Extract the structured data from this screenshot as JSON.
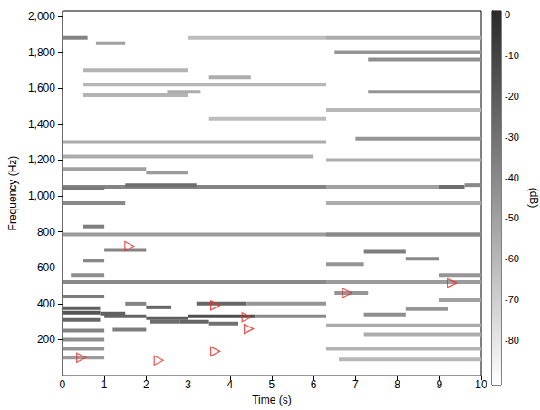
{
  "chart_data": {
    "type": "heatmap",
    "xlabel": "Time (s)",
    "ylabel": "Frequency (Hz)",
    "xlim": [
      0,
      10
    ],
    "xticks": [
      0,
      1,
      2,
      3,
      4,
      5,
      6,
      7,
      8,
      9,
      10
    ],
    "ylim": [
      0,
      2030
    ],
    "yticks": [
      200,
      400,
      600,
      800,
      1000,
      1200,
      1400,
      1600,
      1800,
      2000
    ],
    "cells": [
      [
        0,
        0.9,
        350,
        -18
      ],
      [
        0,
        0.9,
        375,
        -22
      ],
      [
        0,
        0.9,
        310,
        -25
      ],
      [
        0,
        1,
        440,
        -35
      ],
      [
        0,
        1,
        250,
        -38
      ],
      [
        0,
        1,
        200,
        -42
      ],
      [
        0,
        1,
        150,
        -45
      ],
      [
        0,
        1,
        100,
        -48
      ],
      [
        0.9,
        1.5,
        345,
        -22
      ],
      [
        1,
        2,
        330,
        -24
      ],
      [
        1.2,
        2,
        255,
        -35
      ],
      [
        1.5,
        2,
        400,
        -38
      ],
      [
        2,
        2.6,
        380,
        -25
      ],
      [
        2,
        3,
        320,
        -22
      ],
      [
        2.1,
        2.8,
        300,
        -28
      ],
      [
        2.8,
        3.5,
        300,
        -25
      ],
      [
        3,
        4.6,
        330,
        -15
      ],
      [
        3.2,
        4.4,
        400,
        -25
      ],
      [
        3.5,
        4.2,
        290,
        -30
      ],
      [
        4.6,
        6.3,
        330,
        -40
      ],
      [
        4.4,
        6.3,
        400,
        -45
      ],
      [
        0,
        6.3,
        520,
        -40
      ],
      [
        0.2,
        1,
        560,
        -42
      ],
      [
        0.5,
        1,
        640,
        -40
      ],
      [
        0.5,
        1,
        830,
        -35
      ],
      [
        1,
        2,
        700,
        -38
      ],
      [
        0,
        1.5,
        960,
        -40
      ],
      [
        0,
        6.3,
        1050,
        -38
      ],
      [
        1.5,
        3.2,
        1060,
        -28
      ],
      [
        0,
        1,
        1040,
        -33
      ],
      [
        0,
        10,
        785,
        -48
      ],
      [
        0,
        2,
        1150,
        -50
      ],
      [
        2,
        3,
        1130,
        -48
      ],
      [
        0,
        6,
        1220,
        -55
      ],
      [
        0,
        6.3,
        1300,
        -55
      ],
      [
        3.5,
        6.3,
        1430,
        -62
      ],
      [
        0.5,
        3,
        1560,
        -58
      ],
      [
        0.5,
        6.3,
        1620,
        -60
      ],
      [
        0.5,
        3,
        1700,
        -58
      ],
      [
        0,
        0.6,
        1880,
        -38
      ],
      [
        0.8,
        1.5,
        1850,
        -50
      ],
      [
        3,
        6.3,
        1880,
        -62
      ],
      [
        2.5,
        3.3,
        1580,
        -55
      ],
      [
        3.5,
        4.5,
        1660,
        -55
      ],
      [
        6.3,
        10,
        1880,
        -55
      ],
      [
        6.5,
        10,
        1800,
        -45
      ],
      [
        7.3,
        10,
        1760,
        -42
      ],
      [
        7.3,
        10,
        1580,
        -45
      ],
      [
        6.3,
        10,
        1480,
        -60
      ],
      [
        7,
        10,
        1320,
        -45
      ],
      [
        6.3,
        10,
        1200,
        -55
      ],
      [
        6.3,
        9,
        1050,
        -50
      ],
      [
        9,
        9.6,
        1050,
        -28
      ],
      [
        9.6,
        10,
        1060,
        -40
      ],
      [
        6.3,
        10,
        960,
        -55
      ],
      [
        6.3,
        10,
        785,
        -40
      ],
      [
        7.2,
        8.2,
        690,
        -35
      ],
      [
        8.2,
        9,
        650,
        -40
      ],
      [
        6.3,
        7.2,
        620,
        -45
      ],
      [
        9,
        10,
        560,
        -45
      ],
      [
        6.3,
        10,
        520,
        -48
      ],
      [
        6.5,
        7.3,
        460,
        -45
      ],
      [
        7.2,
        8.2,
        340,
        -42
      ],
      [
        8.2,
        9.2,
        370,
        -45
      ],
      [
        6.3,
        10,
        280,
        -55
      ],
      [
        6.3,
        10,
        150,
        -58
      ],
      [
        7.2,
        10,
        230,
        -55
      ],
      [
        9,
        10,
        420,
        -50
      ],
      [
        6.6,
        10,
        90,
        -60
      ]
    ],
    "colorbar_label": "(dB)",
    "colorbar_lim": [
      -91,
      1
    ],
    "colorbar_ticks": [
      0,
      -10,
      -20,
      -30,
      -40,
      -50,
      -60,
      -70,
      -80
    ],
    "series": [
      {
        "type": "scatter",
        "marker": "triangle",
        "color": "#e8302a",
        "x": [
          0.45,
          1.6,
          2.3,
          3.65,
          3.65,
          4.4,
          4.45,
          6.8,
          9.3
        ],
        "values": [
          100,
          720,
          85,
          390,
          135,
          325,
          260,
          460,
          515
        ]
      }
    ]
  }
}
